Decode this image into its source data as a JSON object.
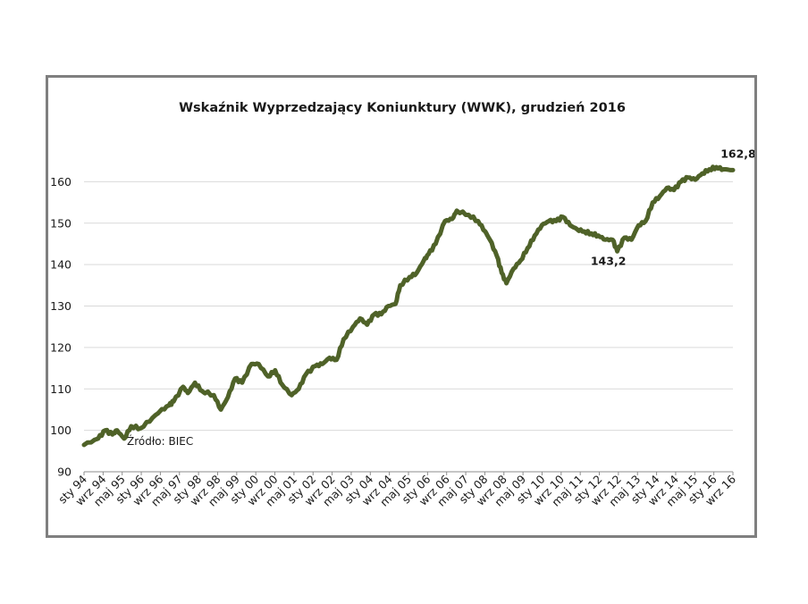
{
  "chart_data": {
    "type": "line",
    "title": "Wskaźnik Wyprzedzający Koniunktury (WWK),  grudzień 2016",
    "xlabel": "",
    "ylabel": "",
    "ylim": [
      90,
      170
    ],
    "yticks": [
      90,
      100,
      110,
      120,
      130,
      140,
      150,
      160
    ],
    "grid": true,
    "line_color": "#4f6228",
    "x_tick_labels": [
      "sty 94",
      "wrz 94",
      "maj 95",
      "sty 96",
      "wrz 96",
      "maj 97",
      "sty 98",
      "wrz 98",
      "maj 99",
      "sty 00",
      "wrz 00",
      "maj 01",
      "sty 02",
      "wrz 02",
      "maj 03",
      "sty 04",
      "wrz 04",
      "maj 05",
      "sty 06",
      "wrz 06",
      "maj 07",
      "sty 08",
      "wrz 08",
      "maj 09",
      "sty 10",
      "wrz 10",
      "maj 11",
      "sty 12",
      "wrz 12",
      "maj 13",
      "sty 14",
      "wrz 14",
      "maj 15",
      "sty 16",
      "wrz 16"
    ],
    "x_start": "1994-01",
    "x_end": "2016-12",
    "anchors": [
      [
        "1994-01",
        96.5
      ],
      [
        "1994-07",
        98.0
      ],
      [
        "1994-10",
        100.0
      ],
      [
        "1995-01",
        99.0
      ],
      [
        "1995-03",
        100.0
      ],
      [
        "1995-06",
        98.0
      ],
      [
        "1995-09",
        101.0
      ],
      [
        "1996-01",
        100.5
      ],
      [
        "1996-06",
        103.0
      ],
      [
        "1996-09",
        104.5
      ],
      [
        "1997-01",
        106.0
      ],
      [
        "1997-03",
        107.0
      ],
      [
        "1997-07",
        110.5
      ],
      [
        "1997-09",
        109.0
      ],
      [
        "1997-12",
        111.5
      ],
      [
        "1998-03",
        109.5
      ],
      [
        "1998-08",
        108.5
      ],
      [
        "1998-11",
        105.0
      ],
      [
        "1999-02",
        108.0
      ],
      [
        "1999-05",
        112.5
      ],
      [
        "1999-08",
        111.5
      ],
      [
        "1999-12",
        116.0
      ],
      [
        "2000-03",
        116.0
      ],
      [
        "2000-07",
        113.0
      ],
      [
        "2000-10",
        114.5
      ],
      [
        "2001-01",
        111.0
      ],
      [
        "2001-05",
        108.5
      ],
      [
        "2001-08",
        110.0
      ],
      [
        "2001-11",
        113.5
      ],
      [
        "2002-03",
        115.5
      ],
      [
        "2002-06",
        116.0
      ],
      [
        "2002-09",
        117.5
      ],
      [
        "2002-12",
        117.0
      ],
      [
        "2003-03",
        122.0
      ],
      [
        "2003-07",
        125.0
      ],
      [
        "2003-10",
        127.0
      ],
      [
        "2004-01",
        125.5
      ],
      [
        "2004-04",
        128.0
      ],
      [
        "2004-07",
        128.0
      ],
      [
        "2004-10",
        130.0
      ],
      [
        "2005-01",
        130.5
      ],
      [
        "2005-03",
        135.0
      ],
      [
        "2005-07",
        137.0
      ],
      [
        "2005-10",
        138.0
      ],
      [
        "2006-01",
        141.0
      ],
      [
        "2006-03",
        142.5
      ],
      [
        "2006-06",
        145.0
      ],
      [
        "2006-10",
        150.5
      ],
      [
        "2007-01",
        151.0
      ],
      [
        "2007-03",
        153.0
      ],
      [
        "2007-08",
        152.0
      ],
      [
        "2007-12",
        150.5
      ],
      [
        "2008-03",
        148.0
      ],
      [
        "2008-05",
        146.0
      ],
      [
        "2008-08",
        142.0
      ],
      [
        "2008-10",
        138.0
      ],
      [
        "2008-12",
        135.5
      ],
      [
        "2009-03",
        139.0
      ],
      [
        "2009-06",
        141.0
      ],
      [
        "2009-09",
        144.0
      ],
      [
        "2009-12",
        147.0
      ],
      [
        "2010-03",
        149.5
      ],
      [
        "2010-06",
        150.5
      ],
      [
        "2010-09",
        150.5
      ],
      [
        "2010-12",
        151.5
      ],
      [
        "2011-03",
        149.5
      ],
      [
        "2011-06",
        148.5
      ],
      [
        "2011-09",
        148.0
      ],
      [
        "2011-12",
        147.5
      ],
      [
        "2012-03",
        147.0
      ],
      [
        "2012-06",
        146.0
      ],
      [
        "2012-09",
        146.0
      ],
      [
        "2012-11",
        143.2
      ],
      [
        "2013-02",
        146.5
      ],
      [
        "2013-05",
        146.0
      ],
      [
        "2013-08",
        149.5
      ],
      [
        "2013-11",
        150.5
      ],
      [
        "2014-02",
        155.0
      ],
      [
        "2014-05",
        156.5
      ],
      [
        "2014-08",
        158.5
      ],
      [
        "2014-11",
        158.0
      ],
      [
        "2015-02",
        160.0
      ],
      [
        "2015-05",
        161.0
      ],
      [
        "2015-08",
        160.5
      ],
      [
        "2015-11",
        162.0
      ],
      [
        "2016-02",
        163.0
      ],
      [
        "2016-05",
        163.5
      ],
      [
        "2016-08",
        163.0
      ],
      [
        "2016-12",
        162.8
      ]
    ],
    "annotations": [
      {
        "text": "162,8",
        "x": "2016-12",
        "y": 162.8
      },
      {
        "text": "143,2",
        "x": "2012-11",
        "y": 143.2
      }
    ],
    "source_note": "Źródło: BIEC"
  }
}
